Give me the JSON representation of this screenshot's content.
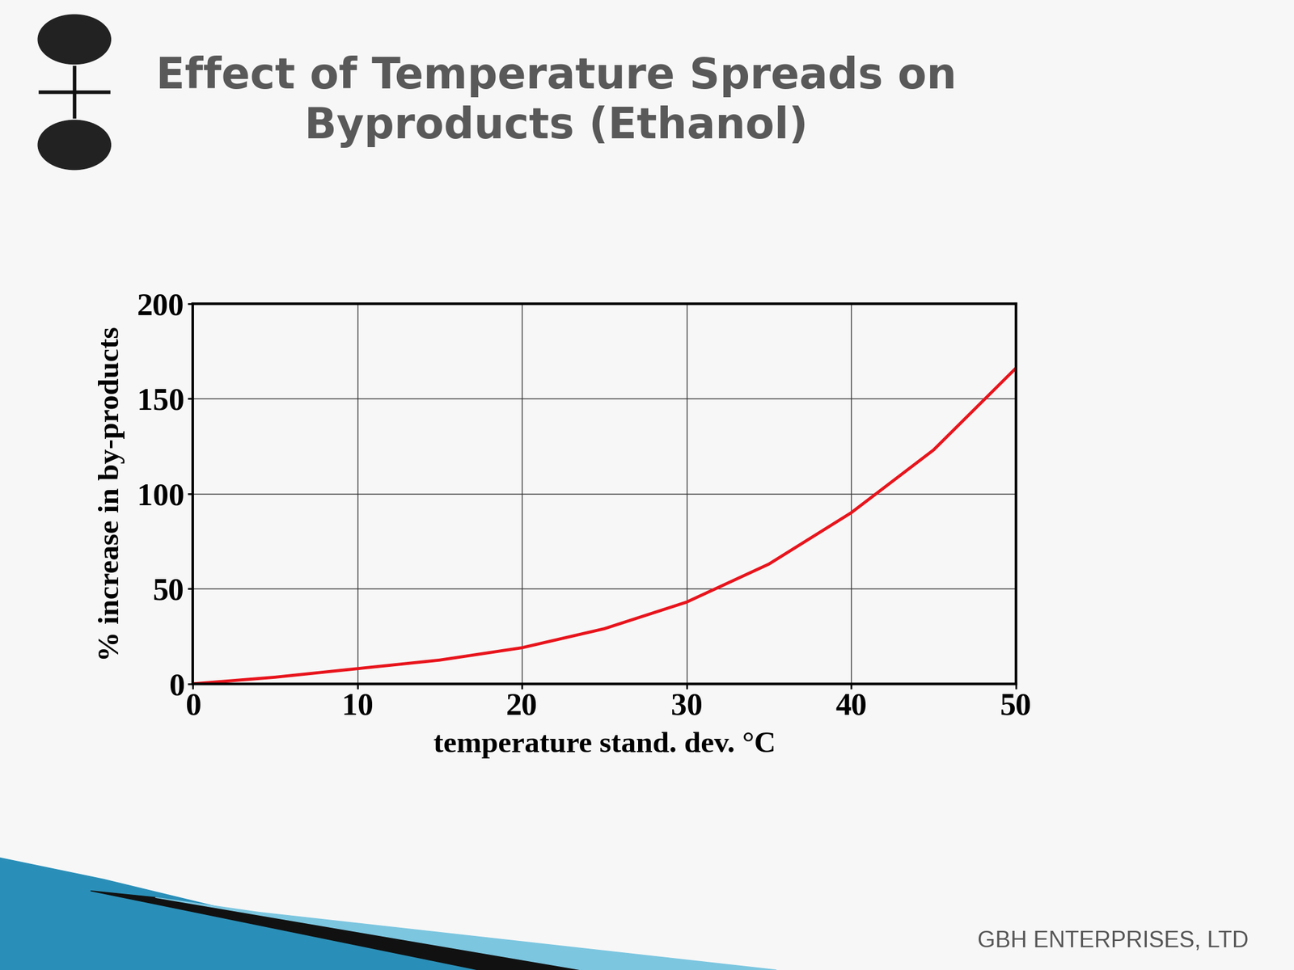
{
  "title": "Effect of Temperature Spreads on\nByproducts (Ethanol)",
  "footer": "GBH ENTERPRISES, LTD",
  "chart_data": {
    "type": "line",
    "x_label": "temperature stand. dev. °C",
    "y_label": "% increase in by-products",
    "x": [
      0,
      5,
      10,
      15,
      20,
      25,
      30,
      35,
      40,
      45,
      50
    ],
    "values": [
      0,
      3.5,
      8,
      12.5,
      19,
      29,
      43,
      63,
      90,
      123,
      166
    ],
    "color": "#e8141c",
    "xlim": [
      0,
      50
    ],
    "xticks": [
      0,
      10,
      20,
      30,
      40,
      50
    ],
    "ylim": [
      0,
      200
    ],
    "yticks": [
      0,
      50,
      100,
      150,
      200
    ],
    "grid": true
  }
}
